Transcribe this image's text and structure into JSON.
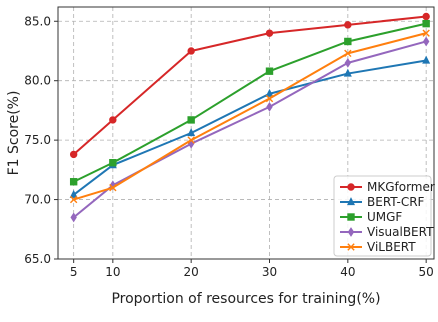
{
  "chart_data": {
    "type": "line",
    "title": "",
    "xlabel": "Proportion of resources for training(%)",
    "ylabel": "F1 Score(%)",
    "x": [
      5,
      10,
      20,
      30,
      40,
      50
    ],
    "xlim": [
      3,
      51
    ],
    "ylim": [
      65,
      86.2
    ],
    "x_ticks": [
      5,
      10,
      20,
      30,
      40,
      50
    ],
    "y_ticks": [
      65.0,
      70.0,
      75.0,
      80.0,
      85.0
    ],
    "x_tick_labels": [
      "5",
      "10",
      "20",
      "30",
      "40",
      "50"
    ],
    "y_tick_labels": [
      "65.0",
      "70.0",
      "75.0",
      "80.0",
      "85.0"
    ],
    "grid": true,
    "legend_position": "bottom-right",
    "series": [
      {
        "name": "MKGformer",
        "color": "#d62728",
        "marker": "circle",
        "values": [
          73.8,
          76.7,
          82.5,
          84.0,
          84.7,
          85.4
        ]
      },
      {
        "name": "BERT-CRF",
        "color": "#1f77b4",
        "marker": "triangle",
        "values": [
          70.4,
          72.9,
          75.6,
          78.9,
          80.6,
          81.7
        ]
      },
      {
        "name": "UMGF",
        "color": "#2ca02c",
        "marker": "square",
        "values": [
          71.5,
          73.1,
          76.7,
          80.8,
          83.3,
          84.8
        ]
      },
      {
        "name": "VisualBERT",
        "color": "#9467bd",
        "marker": "diamond",
        "values": [
          68.5,
          71.2,
          74.7,
          77.8,
          81.5,
          83.3
        ]
      },
      {
        "name": "ViLBERT",
        "color": "#ff7f0e",
        "marker": "x",
        "values": [
          70.0,
          71.0,
          75.0,
          78.5,
          82.3,
          84.0
        ]
      }
    ]
  }
}
